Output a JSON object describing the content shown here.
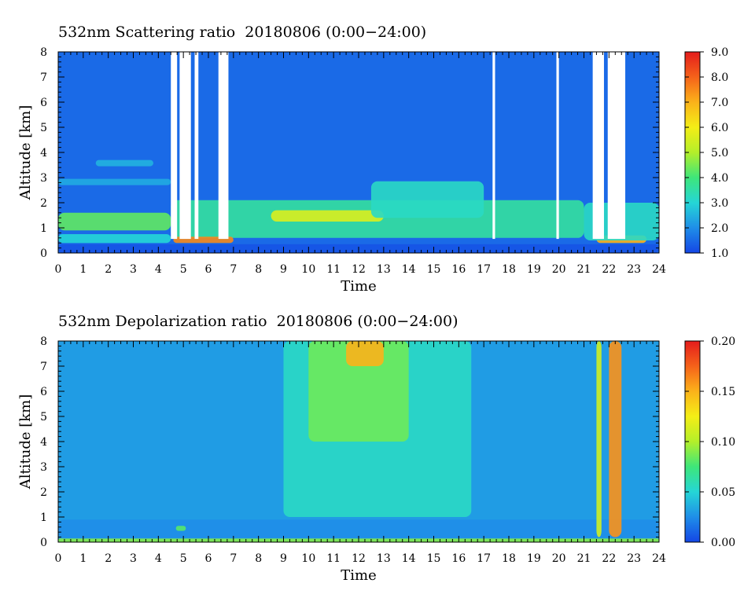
{
  "chart_data": [
    {
      "type": "heatmap",
      "title": "532nm Scattering ratio  20180806 (0:00−24:00)",
      "xlabel": "Time",
      "ylabel": "Altitude [km]",
      "xlim": [
        0,
        24
      ],
      "ylim": [
        0,
        8
      ],
      "x_ticks": [
        "0",
        "1",
        "2",
        "3",
        "4",
        "5",
        "6",
        "7",
        "8",
        "9",
        "10",
        "11",
        "12",
        "13",
        "14",
        "15",
        "16",
        "17",
        "18",
        "19",
        "20",
        "21",
        "22",
        "23",
        "24"
      ],
      "y_ticks": [
        "0",
        "1",
        "2",
        "3",
        "4",
        "5",
        "6",
        "7",
        "8"
      ],
      "colorbar": {
        "range": [
          1.0,
          9.0
        ],
        "tick_labels": [
          "1.0",
          "2.0",
          "3.0",
          "4.0",
          "5.0",
          "6.0",
          "7.0",
          "8.0",
          "9.0"
        ],
        "colors": [
          "#1446e6",
          "#1f8ee8",
          "#25d6d6",
          "#3ee67a",
          "#b4ef2a",
          "#f4ee16",
          "#fbb21a",
          "#f5621a",
          "#e41c1c"
        ]
      },
      "background_value": 1.5,
      "no_data_time_ranges": [
        [
          4.5,
          4.75
        ],
        [
          4.85,
          5.3
        ],
        [
          5.45,
          5.6
        ],
        [
          6.4,
          6.8
        ],
        [
          17.35,
          17.45
        ],
        [
          19.9,
          20.0
        ],
        [
          21.35,
          21.8
        ],
        [
          21.95,
          22.65
        ]
      ],
      "layers": [
        {
          "time_range": [
            0,
            24
          ],
          "altitude_range": [
            0.0,
            0.35
          ],
          "value": 1.2
        },
        {
          "time_range": [
            0,
            4.5
          ],
          "altitude_range": [
            0.4,
            0.75
          ],
          "value": 3.0
        },
        {
          "time_range": [
            0,
            4.5
          ],
          "altitude_range": [
            0.9,
            1.6
          ],
          "value": 4.3
        },
        {
          "time_range": [
            0,
            4.5
          ],
          "altitude_range": [
            2.7,
            2.95
          ],
          "value": 2.4
        },
        {
          "time_range": [
            1.5,
            3.8
          ],
          "altitude_range": [
            3.45,
            3.7
          ],
          "value": 2.5
        },
        {
          "time_range": [
            4.5,
            21.0
          ],
          "altitude_range": [
            0.6,
            2.1
          ],
          "value": 3.6
        },
        {
          "time_range": [
            8.5,
            13.0
          ],
          "altitude_range": [
            1.25,
            1.7
          ],
          "value": 5.6
        },
        {
          "time_range": [
            12.5,
            17.0
          ],
          "altitude_range": [
            1.4,
            2.85
          ],
          "value": 3.2
        },
        {
          "time_range": [
            4.6,
            7.0
          ],
          "altitude_range": [
            0.4,
            0.65
          ],
          "value": 7.5
        },
        {
          "time_range": [
            21.5,
            23.5
          ],
          "altitude_range": [
            0.4,
            0.7
          ],
          "value": 7.0
        },
        {
          "time_range": [
            21.0,
            24.0
          ],
          "altitude_range": [
            0.5,
            2.0
          ],
          "value": 3.2
        }
      ]
    },
    {
      "type": "heatmap",
      "title": "532nm Depolarization ratio  20180806 (0:00−24:00)",
      "xlabel": "Time",
      "ylabel": "Altitude [km]",
      "xlim": [
        0,
        24
      ],
      "ylim": [
        0,
        8
      ],
      "x_ticks": [
        "0",
        "1",
        "2",
        "3",
        "4",
        "5",
        "6",
        "7",
        "8",
        "9",
        "10",
        "11",
        "12",
        "13",
        "14",
        "15",
        "16",
        "17",
        "18",
        "19",
        "20",
        "21",
        "22",
        "23",
        "24"
      ],
      "y_ticks": [
        "0",
        "1",
        "2",
        "3",
        "4",
        "5",
        "6",
        "7",
        "8"
      ],
      "colorbar": {
        "range": [
          0.0,
          0.2
        ],
        "tick_labels": [
          "0.00",
          "0.05",
          "0.10",
          "0.15",
          "0.20"
        ],
        "colors": [
          "#1446e6",
          "#1f8ee8",
          "#25d6d6",
          "#3ee67a",
          "#b4ef2a",
          "#f4ee16",
          "#fbb21a",
          "#f5621a",
          "#e41c1c"
        ]
      },
      "background_value": 0.03,
      "layers": [
        {
          "time_range": [
            0,
            24
          ],
          "altitude_range": [
            0.0,
            0.15
          ],
          "value": 0.09
        },
        {
          "time_range": [
            0,
            24
          ],
          "altitude_range": [
            0.15,
            0.9
          ],
          "value": 0.025
        },
        {
          "time_range": [
            9.0,
            16.5
          ],
          "altitude_range": [
            1.0,
            8.0
          ],
          "value": 0.055
        },
        {
          "time_range": [
            10.0,
            14.0
          ],
          "altitude_range": [
            4.0,
            8.0
          ],
          "value": 0.085
        },
        {
          "time_range": [
            11.5,
            13.0
          ],
          "altitude_range": [
            7.0,
            8.0
          ],
          "value": 0.15
        },
        {
          "time_range": [
            21.5,
            21.7
          ],
          "altitude_range": [
            0.2,
            8.0
          ],
          "value": 0.11
        },
        {
          "time_range": [
            22.0,
            22.5
          ],
          "altitude_range": [
            0.2,
            8.0
          ],
          "value": 0.16
        },
        {
          "time_range": [
            4.7,
            5.1
          ],
          "altitude_range": [
            0.45,
            0.65
          ],
          "value": 0.08
        }
      ]
    }
  ]
}
